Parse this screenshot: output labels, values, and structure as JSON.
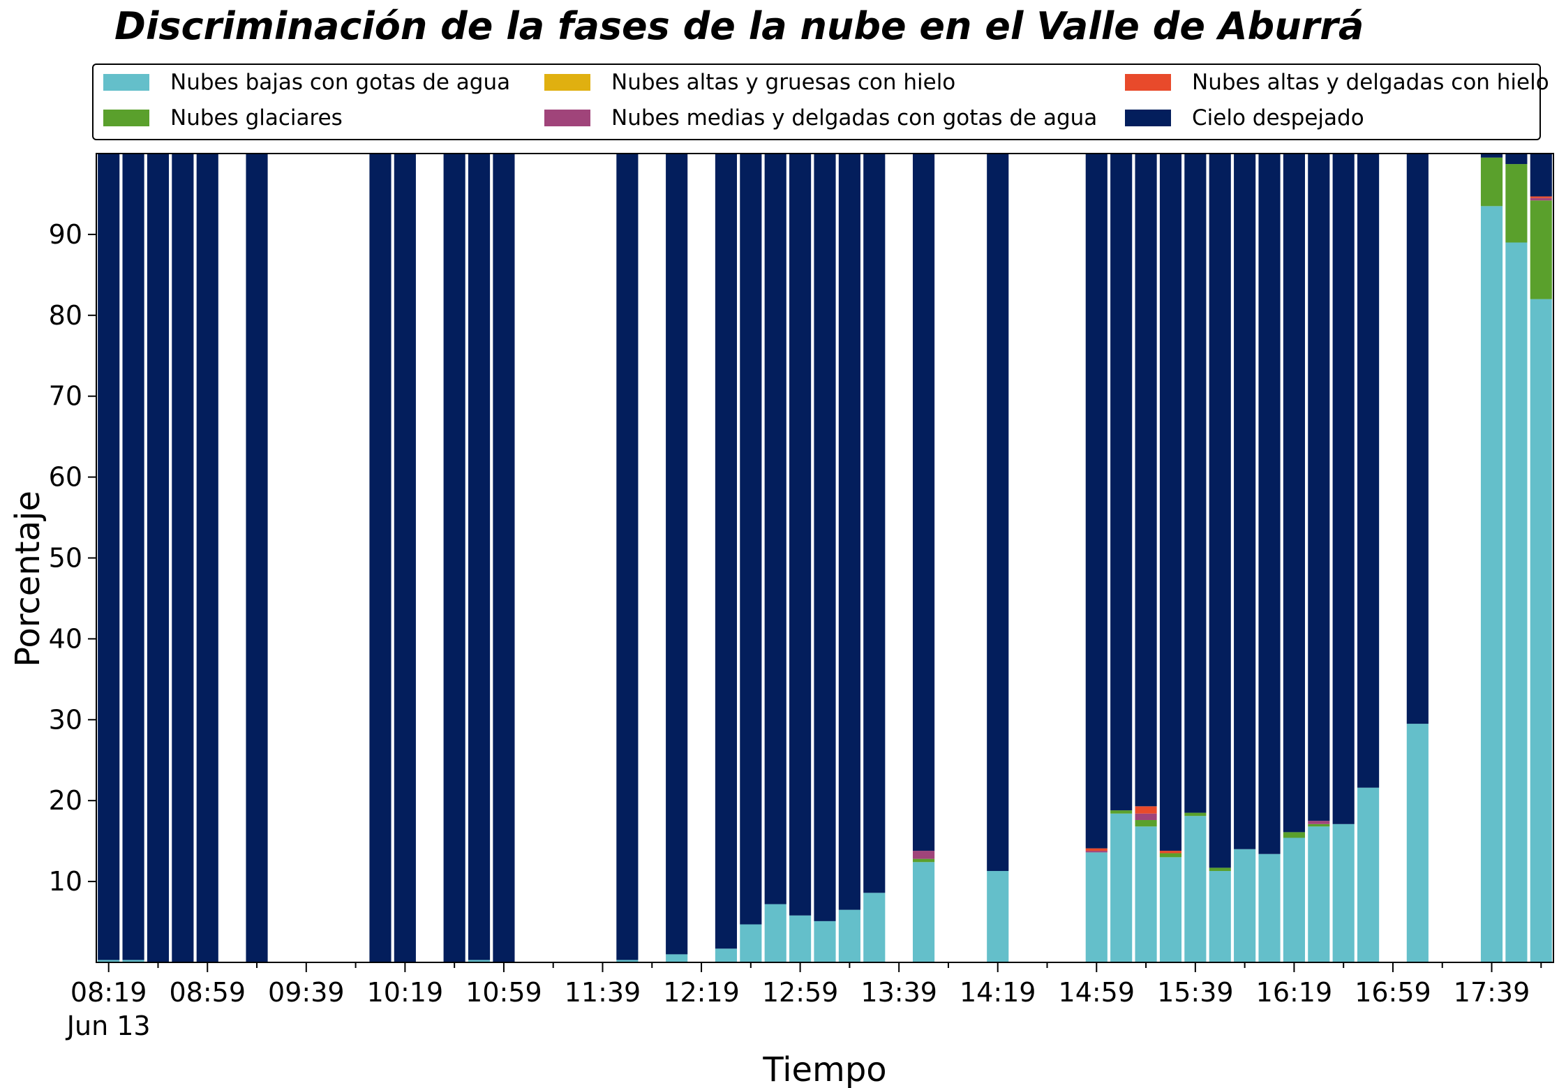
{
  "chart_data": {
    "type": "bar",
    "stacked": true,
    "title": "Discriminación de la fases de la nube en el Valle de Aburrá",
    "xlabel": "Tiempo",
    "ylabel": "Porcentaje",
    "ylim": [
      0,
      100
    ],
    "yticks": [
      10,
      20,
      30,
      40,
      50,
      60,
      70,
      80,
      90
    ],
    "xlim": [
      "08:14",
      "18:04"
    ],
    "x_date_label": "Jun 13",
    "xticks_major": [
      "08:19",
      "08:59",
      "09:39",
      "10:19",
      "10:59",
      "11:39",
      "12:19",
      "12:59",
      "13:39",
      "14:19",
      "14:59",
      "15:39",
      "16:19",
      "16:59",
      "17:39"
    ],
    "xticks_minor": [
      "08:39",
      "09:19",
      "09:59",
      "10:39",
      "11:19",
      "11:59",
      "12:39",
      "13:19",
      "13:59",
      "14:39",
      "15:19",
      "15:59",
      "16:39",
      "17:19",
      "17:59"
    ],
    "legend_position": "top",
    "grid": false,
    "x": [
      "08:19",
      "08:29",
      "08:39",
      "08:49",
      "08:59",
      "09:19",
      "10:09",
      "10:19",
      "10:39",
      "10:49",
      "10:59",
      "11:49",
      "12:09",
      "12:29",
      "12:39",
      "12:49",
      "12:59",
      "13:09",
      "13:19",
      "13:29",
      "13:49",
      "14:19",
      "14:59",
      "15:09",
      "15:19",
      "15:29",
      "15:39",
      "15:49",
      "15:59",
      "16:09",
      "16:19",
      "16:29",
      "16:39",
      "16:49",
      "17:09",
      "17:39",
      "17:49",
      "17:59"
    ],
    "series": [
      {
        "name": "Nubes bajas con gotas de agua",
        "color": "#64bfca",
        "values": [
          0.3,
          0.3,
          0,
          0,
          0,
          0,
          0,
          0,
          0,
          0.3,
          0,
          0.3,
          1.0,
          1.7,
          4.7,
          7.2,
          5.8,
          5.1,
          6.5,
          8.6,
          12.4,
          11.3,
          13.6,
          18.4,
          16.8,
          13.0,
          18.1,
          11.3,
          14.0,
          13.4,
          15.4,
          16.8,
          17.1,
          21.6,
          29.5,
          93.5,
          89.0,
          82.0
        ]
      },
      {
        "name": "Nubes glaciares",
        "color": "#5aa02c",
        "values": [
          0,
          0,
          0,
          0,
          0,
          0,
          0,
          0,
          0,
          0,
          0,
          0,
          0,
          0,
          0,
          0,
          0,
          0,
          0,
          0,
          0.4,
          0,
          0,
          0.4,
          0.8,
          0.5,
          0.4,
          0.4,
          0,
          0,
          0.7,
          0.3,
          0,
          0,
          0,
          6.0,
          9.7,
          12.2
        ]
      },
      {
        "name": "Nubes altas y gruesas con hielo",
        "color": "#e0b010",
        "values": [
          0,
          0,
          0,
          0,
          0,
          0,
          0,
          0,
          0,
          0,
          0,
          0,
          0,
          0,
          0,
          0,
          0,
          0,
          0,
          0,
          0,
          0,
          0,
          0,
          0,
          0,
          0,
          0,
          0,
          0,
          0,
          0,
          0,
          0,
          0,
          0,
          0,
          0
        ]
      },
      {
        "name": "Nubes medias y delgadas con gotas de agua",
        "color": "#a0447a",
        "values": [
          0,
          0,
          0,
          0,
          0,
          0,
          0,
          0,
          0,
          0,
          0,
          0,
          0,
          0,
          0,
          0,
          0,
          0,
          0,
          0,
          1.0,
          0,
          0.2,
          0,
          0.8,
          0,
          0,
          0,
          0,
          0,
          0,
          0.4,
          0,
          0,
          0,
          0,
          0,
          0.3
        ]
      },
      {
        "name": "Nubes altas y delgadas con hielo",
        "color": "#e84a2b",
        "values": [
          0,
          0,
          0,
          0,
          0,
          0,
          0,
          0,
          0,
          0,
          0,
          0,
          0,
          0,
          0,
          0,
          0,
          0,
          0,
          0,
          0,
          0,
          0.3,
          0,
          0.9,
          0.3,
          0,
          0,
          0,
          0,
          0,
          0,
          0,
          0,
          0,
          0,
          0,
          0.2
        ]
      },
      {
        "name": "Cielo despejado",
        "color": "#031e5c",
        "values": [
          99.7,
          99.7,
          100,
          100,
          100,
          100,
          100,
          100,
          100,
          99.7,
          100,
          99.7,
          99.0,
          98.3,
          95.3,
          92.8,
          94.2,
          94.9,
          93.5,
          91.4,
          86.2,
          88.7,
          85.9,
          81.2,
          80.7,
          86.2,
          81.5,
          88.3,
          86.0,
          86.6,
          83.9,
          82.5,
          82.9,
          78.4,
          70.5,
          0.5,
          1.3,
          5.3
        ]
      }
    ]
  }
}
